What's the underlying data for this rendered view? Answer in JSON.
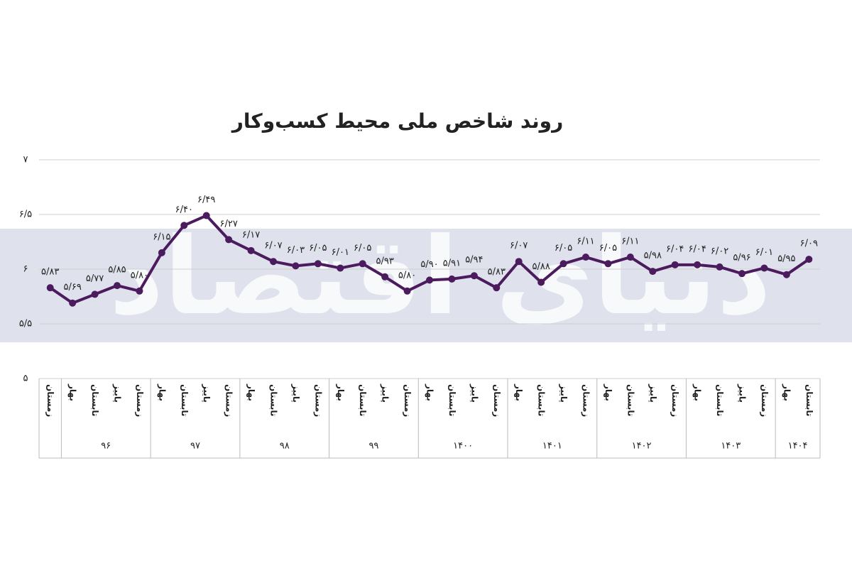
{
  "chart_data": {
    "type": "line",
    "title": "روند شاخص ملی محیط کسب‌وکار",
    "watermark": "دنیای اقتصاد",
    "categories": [
      "زمستان",
      "بهار",
      "تابستان",
      "پاییز",
      "زمستان",
      "بهار",
      "تابستان",
      "پاییز",
      "زمستان",
      "بهار",
      "تابستان",
      "پاییز",
      "زمستان",
      "بهار",
      "تابستان",
      "پاییز",
      "زمستان",
      "بهار",
      "تابستان",
      "پاییز",
      "زمستان",
      "بهار",
      "تابستان",
      "پاییز",
      "زمستان",
      "بهار",
      "تابستان",
      "پاییز",
      "زمستان",
      "بهار",
      "تابستان",
      "پاییز",
      "زمستان",
      "بهار",
      "تابستان"
    ],
    "category_groups": [
      {
        "label": null,
        "count": 1
      },
      {
        "label": "۹۶",
        "count": 4
      },
      {
        "label": "۹۷",
        "count": 4
      },
      {
        "label": "۹۸",
        "count": 4
      },
      {
        "label": "۹۹",
        "count": 4
      },
      {
        "label": "۱۴۰۰",
        "count": 4
      },
      {
        "label": "۱۴۰۱",
        "count": 4
      },
      {
        "label": "۱۴۰۲",
        "count": 4
      },
      {
        "label": "۱۴۰۳",
        "count": 4
      },
      {
        "label": "۱۴۰۴",
        "count": 2
      }
    ],
    "values": [
      5.83,
      5.69,
      5.77,
      5.85,
      5.8,
      6.15,
      6.4,
      6.49,
      6.27,
      6.17,
      6.07,
      6.03,
      6.05,
      6.01,
      6.05,
      5.93,
      5.8,
      5.9,
      5.91,
      5.94,
      5.83,
      6.07,
      5.88,
      6.05,
      6.11,
      6.05,
      6.11,
      5.98,
      6.04,
      6.04,
      6.02,
      5.96,
      6.01,
      5.95,
      6.09
    ],
    "value_labels": [
      "۵/۸۳",
      "۵/۶۹",
      "۵/۷۷",
      "۵/۸۵",
      "۵/۸۰",
      "۶/۱۵",
      "۶/۴۰",
      "۶/۴۹",
      "۶/۲۷",
      "۶/۱۷",
      "۶/۰۷",
      "۶/۰۳",
      "۶/۰۵",
      "۶/۰۱",
      "۶/۰۵",
      "۵/۹۳",
      "۵/۸۰",
      "۵/۹۰",
      "۵/۹۱",
      "۵/۹۴",
      "۵/۸۳",
      "۶/۰۷",
      "۵/۸۸",
      "۶/۰۵",
      "۶/۱۱",
      "۶/۰۵",
      "۶/۱۱",
      "۵/۹۸",
      "۶/۰۴",
      "۶/۰۴",
      "۶/۰۲",
      "۵/۹۶",
      "۶/۰۱",
      "۵/۹۵",
      "۶/۰۹"
    ],
    "color": "#4b1b5e",
    "ylim": [
      5,
      7
    ],
    "yticks": [
      {
        "value": 5,
        "label": "۵"
      },
      {
        "value": 5.5,
        "label": "۵/۵"
      },
      {
        "value": 6,
        "label": "۶"
      },
      {
        "value": 6.5,
        "label": "۶/۵"
      },
      {
        "value": 7,
        "label": "۷"
      }
    ],
    "grid": true
  }
}
